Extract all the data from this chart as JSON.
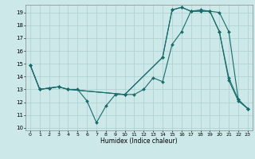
{
  "xlabel": "Humidex (Indice chaleur)",
  "xlim": [
    -0.5,
    23.5
  ],
  "ylim": [
    9.8,
    19.6
  ],
  "yticks": [
    10,
    11,
    12,
    13,
    14,
    15,
    16,
    17,
    18,
    19
  ],
  "xticks": [
    0,
    1,
    2,
    3,
    4,
    5,
    6,
    7,
    8,
    9,
    10,
    11,
    12,
    13,
    14,
    15,
    16,
    17,
    18,
    19,
    20,
    21,
    22,
    23
  ],
  "bg_color": "#cce8e8",
  "grid_color": "#aacfcf",
  "line_color": "#1a6b6b",
  "line1": {
    "x": [
      0,
      1,
      2,
      3,
      4,
      5,
      6,
      7,
      8,
      9,
      10,
      11,
      12,
      13,
      14,
      15,
      16,
      17,
      18,
      19,
      20,
      21,
      22,
      23
    ],
    "y": [
      14.9,
      13.0,
      13.1,
      13.2,
      13.0,
      13.0,
      12.1,
      10.4,
      11.7,
      12.6,
      12.6,
      12.6,
      13.0,
      13.9,
      13.6,
      16.5,
      17.5,
      19.1,
      19.2,
      19.1,
      17.5,
      13.7,
      12.1,
      11.5
    ]
  },
  "line2": {
    "x": [
      0,
      1,
      2,
      3,
      4,
      10,
      14,
      15,
      16,
      17,
      18,
      19,
      20,
      21,
      22,
      23
    ],
    "y": [
      14.9,
      13.0,
      13.1,
      13.2,
      13.0,
      12.6,
      15.5,
      19.2,
      19.4,
      19.1,
      19.1,
      19.1,
      19.0,
      17.5,
      12.2,
      11.5
    ]
  },
  "line3": {
    "x": [
      0,
      1,
      2,
      3,
      4,
      10,
      14,
      15,
      16,
      17,
      18,
      19,
      20,
      21,
      22,
      23
    ],
    "y": [
      14.9,
      13.0,
      13.1,
      13.2,
      13.0,
      12.6,
      15.5,
      19.2,
      19.4,
      19.1,
      19.1,
      19.1,
      17.5,
      13.9,
      12.2,
      11.5
    ]
  }
}
